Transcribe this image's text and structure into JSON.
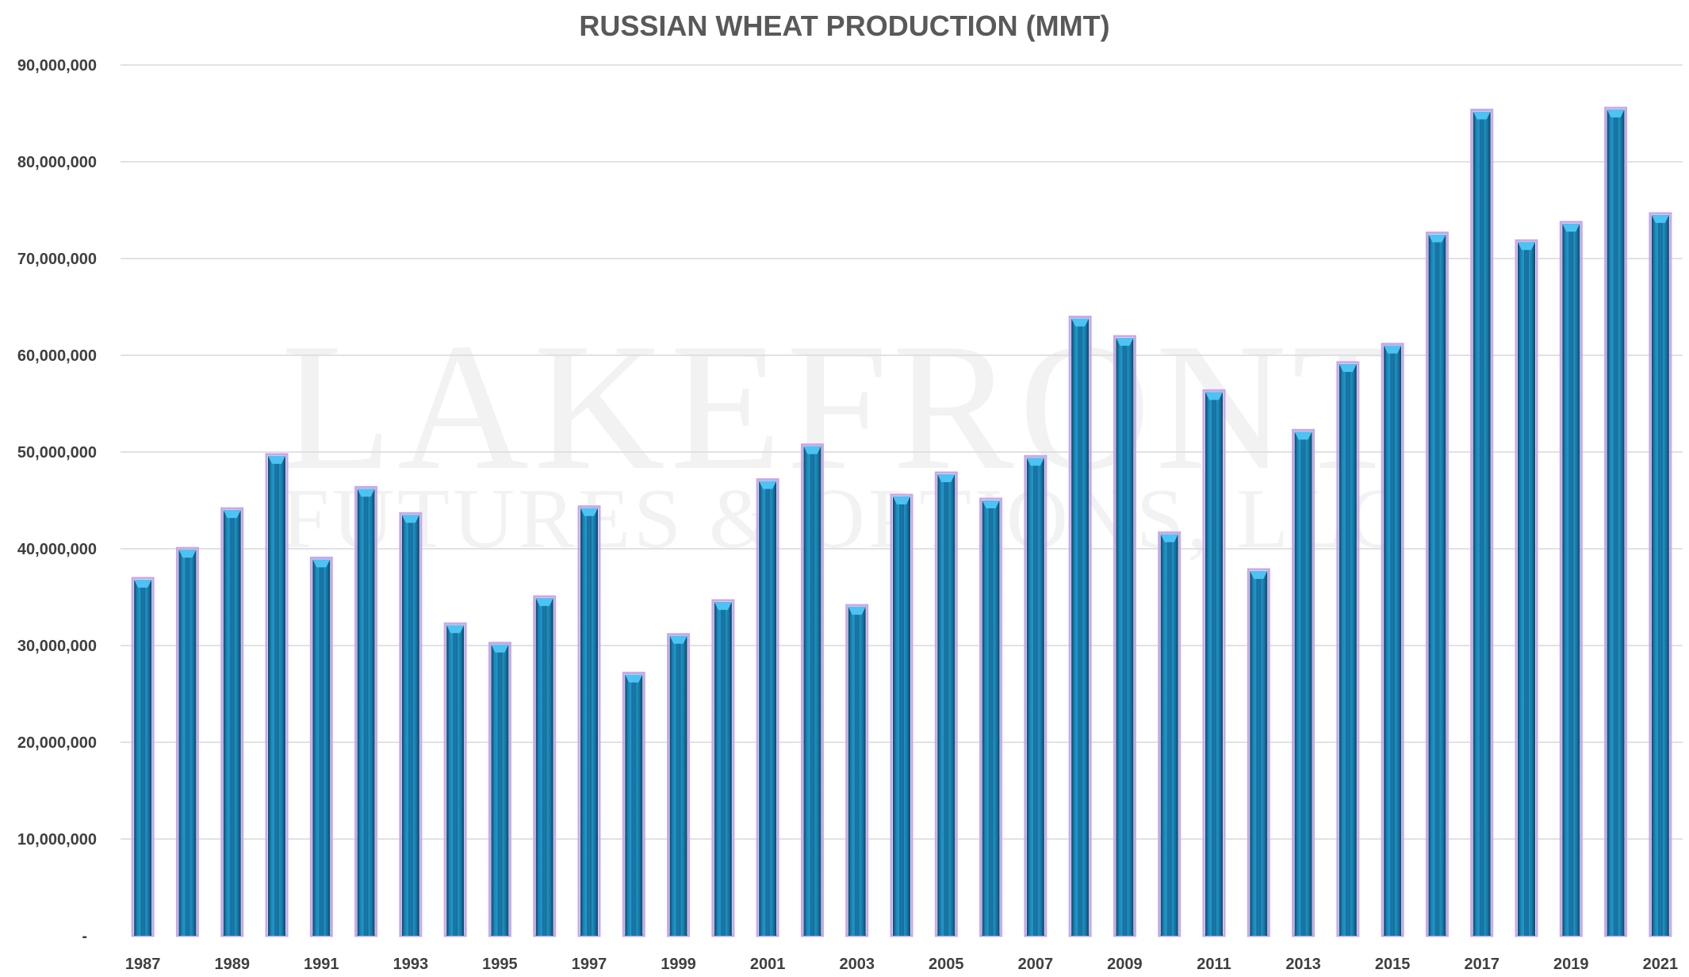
{
  "watermark": {
    "line1": "LAKEFRONT",
    "line2": "FUTURES & OPTIONS, LLC"
  },
  "chart_data": {
    "type": "bar",
    "title": "RUSSIAN WHEAT PRODUCTION (MMT)",
    "xlabel": "",
    "ylabel": "",
    "categories": [
      1987,
      1988,
      1989,
      1990,
      1991,
      1992,
      1993,
      1994,
      1995,
      1996,
      1997,
      1998,
      1999,
      2000,
      2001,
      2002,
      2003,
      2004,
      2005,
      2006,
      2007,
      2008,
      2009,
      2010,
      2011,
      2012,
      2013,
      2014,
      2015,
      2016,
      2017,
      2018,
      2019,
      2020,
      2021
    ],
    "x_tick_labels": [
      "1987",
      "1989",
      "1991",
      "1993",
      "1995",
      "1997",
      "1999",
      "2001",
      "2003",
      "2005",
      "2007",
      "2009",
      "2011",
      "2013",
      "2015",
      "2017",
      "2019",
      "2021"
    ],
    "values": [
      36800000,
      39900000,
      44000000,
      49600000,
      38900000,
      46200000,
      43500000,
      32100000,
      30100000,
      34900000,
      44200000,
      27000000,
      31000000,
      34500000,
      47000000,
      50600000,
      34000000,
      45400000,
      47700000,
      45000000,
      49400000,
      63800000,
      61800000,
      41500000,
      56200000,
      37700000,
      52100000,
      59100000,
      61000000,
      72500000,
      85200000,
      71700000,
      73600000,
      85400000,
      74500000
    ],
    "ylim": [
      0,
      90000000
    ],
    "y_ticks": [
      0,
      10000000,
      20000000,
      30000000,
      40000000,
      50000000,
      60000000,
      70000000,
      80000000,
      90000000
    ],
    "y_tick_labels": [
      "-",
      "10,000,000",
      "20,000,000",
      "30,000,000",
      "40,000,000",
      "50,000,000",
      "60,000,000",
      "70,000,000",
      "80,000,000",
      "90,000,000"
    ],
    "grid": true,
    "legend": "none",
    "colors": {
      "bar_light": "#29a8e0",
      "bar_dark": "#0d4f73",
      "bar_outline": "#c9a8e8",
      "gridline": "#d9d9d9",
      "title": "#595959",
      "tick_label": "#404040"
    }
  }
}
